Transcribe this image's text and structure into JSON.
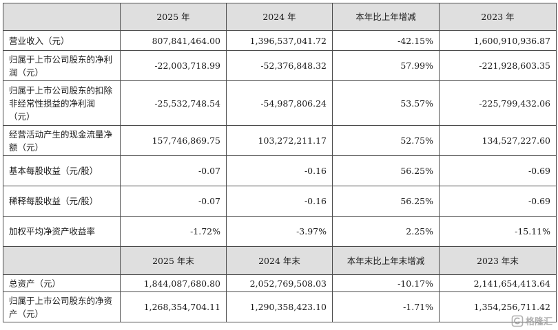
{
  "table": {
    "header1": [
      "",
      "2025 年",
      "2024 年",
      "本年比上年增减",
      "2023 年"
    ],
    "header2": [
      "",
      "2025 年末",
      "2024 年末",
      "本年末比上年末增减",
      "2023 年末"
    ],
    "rows1": [
      {
        "label": "营业收入（元）",
        "values": [
          "807,841,464.00",
          "1,396,537,041.72",
          "-42.15%",
          "1,600,910,936.87"
        ]
      },
      {
        "label": "归属于上市公司股东的净利润（元）",
        "values": [
          "-22,003,718.99",
          "-52,376,848.32",
          "57.99%",
          "-221,928,603.35"
        ]
      },
      {
        "label": "归属于上市公司股东的扣除非经常性损益的净利润（元）",
        "values": [
          "-25,532,748.54",
          "-54,987,806.24",
          "53.57%",
          "-225,799,432.06"
        ]
      },
      {
        "label": "经营活动产生的现金流量净额（元）",
        "values": [
          "157,746,869.75",
          "103,272,211.17",
          "52.75%",
          "134,527,227.60"
        ]
      },
      {
        "label": "基本每股收益（元/股）",
        "values": [
          "-0.07",
          "-0.16",
          "56.25%",
          "-0.69"
        ]
      },
      {
        "label": "稀释每股收益（元/股）",
        "values": [
          "-0.07",
          "-0.16",
          "56.25%",
          "-0.69"
        ]
      },
      {
        "label": "加权平均净资产收益率",
        "values": [
          "-1.72%",
          "-3.97%",
          "2.25%",
          "-15.11%"
        ]
      }
    ],
    "rows2": [
      {
        "label": "总资产（元）",
        "values": [
          "1,844,087,680.80",
          "2,052,769,508.03",
          "-10.17%",
          "2,141,654,413.64"
        ]
      },
      {
        "label": "归属于上市公司股东的净资产（元）",
        "values": [
          "1,268,354,704.11",
          "1,290,358,423.10",
          "-1.71%",
          "1,354,256,711.42"
        ]
      }
    ]
  },
  "watermark": {
    "text": "格隆汇",
    "icon": "glh-logo-icon"
  },
  "colors": {
    "header_bg": "#dfdfdf",
    "border": "#4a4a4a",
    "text": "#1a1a1a"
  }
}
